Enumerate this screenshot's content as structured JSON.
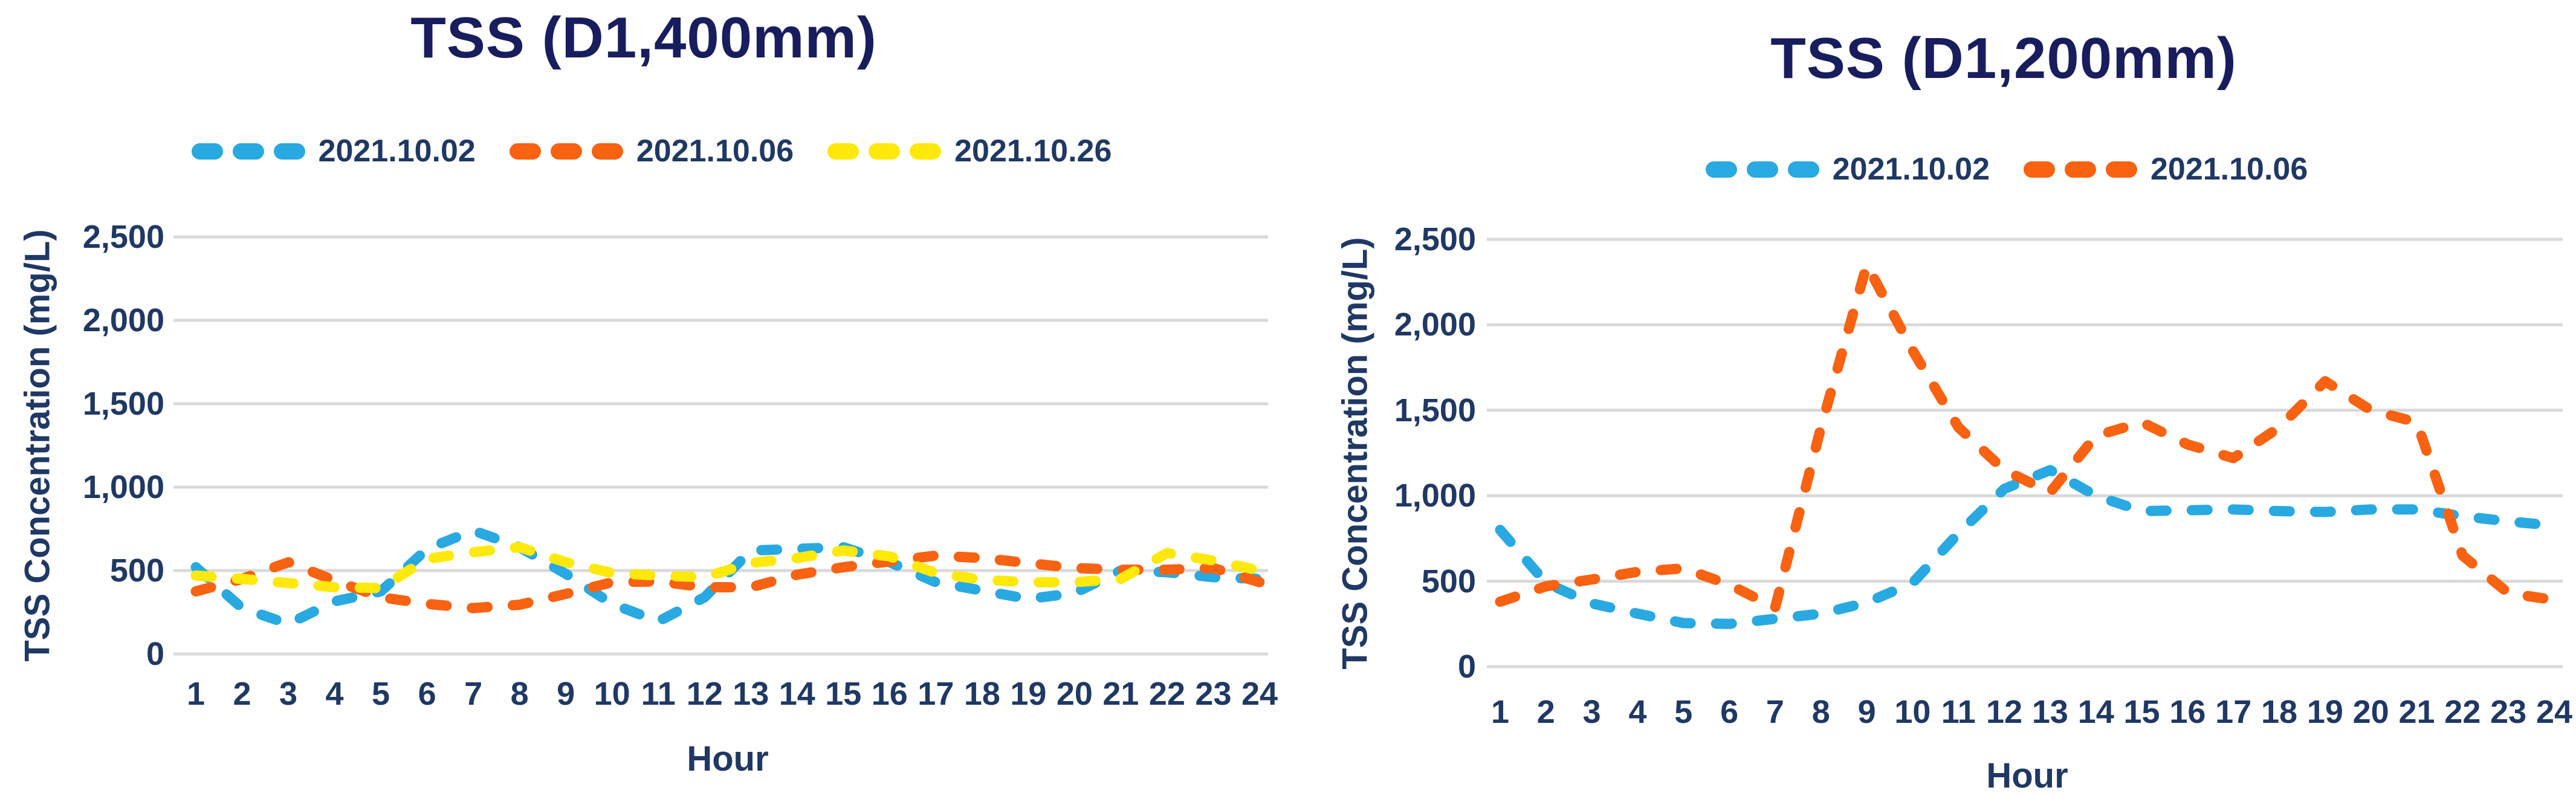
{
  "figure": {
    "background": "#FFFFFF",
    "gridline_color": "#D9D9D9",
    "title_text_color": "#181D5E",
    "axis_text_color": "#1F3864"
  },
  "chart_data": [
    {
      "type": "line",
      "title": "TSS (D1,400mm)",
      "xlabel": "Hour",
      "ylabel": "TSS Concentration (mg/L)",
      "line_style": "dashed",
      "grid": "horizontal",
      "legend_position": "top",
      "ylim": [
        0,
        2500
      ],
      "y_ticks": [
        0,
        500,
        1000,
        1500,
        2000,
        2500
      ],
      "y_tick_labels": [
        "0",
        "500",
        "1,000",
        "1,500",
        "2,000",
        "2,500"
      ],
      "x": [
        1,
        2,
        3,
        4,
        5,
        6,
        7,
        8,
        9,
        10,
        11,
        12,
        13,
        14,
        15,
        16,
        17,
        18,
        19,
        20,
        21,
        22,
        23,
        24
      ],
      "series": [
        {
          "name": "2021.10.02",
          "color": "#29A9E1",
          "values": [
            520,
            275,
            180,
            315,
            375,
            630,
            740,
            640,
            480,
            300,
            195,
            340,
            620,
            630,
            640,
            550,
            430,
            380,
            330,
            365,
            500,
            490,
            460,
            450
          ]
        },
        {
          "name": "2021.10.06",
          "color": "#F96211",
          "values": [
            375,
            450,
            550,
            440,
            340,
            300,
            275,
            295,
            360,
            430,
            435,
            400,
            400,
            475,
            520,
            555,
            590,
            575,
            545,
            515,
            505,
            505,
            515,
            430
          ]
        },
        {
          "name": "2021.10.26",
          "color": "#FFE90A",
          "values": [
            470,
            450,
            425,
            400,
            395,
            570,
            610,
            640,
            550,
            485,
            470,
            460,
            545,
            575,
            620,
            585,
            485,
            445,
            430,
            430,
            450,
            605,
            560,
            500
          ]
        }
      ]
    },
    {
      "type": "line",
      "title": "TSS (D1,200mm)",
      "xlabel": "Hour",
      "ylabel": "TSS Concentration (mg/L)",
      "line_style": "dashed",
      "grid": "horizontal",
      "legend_position": "top",
      "ylim": [
        0,
        2500
      ],
      "y_ticks": [
        0,
        500,
        1000,
        1500,
        2000,
        2500
      ],
      "y_tick_labels": [
        "0",
        "500",
        "1,000",
        "1,500",
        "2,000",
        "2,500"
      ],
      "x": [
        1,
        2,
        3,
        4,
        5,
        6,
        7,
        8,
        9,
        10,
        11,
        12,
        13,
        14,
        15,
        16,
        17,
        18,
        19,
        20,
        21,
        22,
        23,
        24
      ],
      "series": [
        {
          "name": "2021.10.02",
          "color": "#29A9E1",
          "values": [
            800,
            490,
            370,
            310,
            255,
            250,
            280,
            310,
            375,
            490,
            780,
            1040,
            1150,
            1000,
            910,
            915,
            920,
            910,
            905,
            920,
            920,
            880,
            850,
            825
          ]
        },
        {
          "name": "2021.10.06",
          "color": "#F96211",
          "values": [
            380,
            470,
            510,
            555,
            575,
            480,
            345,
            1400,
            2350,
            1850,
            1400,
            1150,
            1020,
            1350,
            1430,
            1300,
            1220,
            1400,
            1670,
            1500,
            1430,
            650,
            430,
            390
          ]
        }
      ]
    }
  ]
}
